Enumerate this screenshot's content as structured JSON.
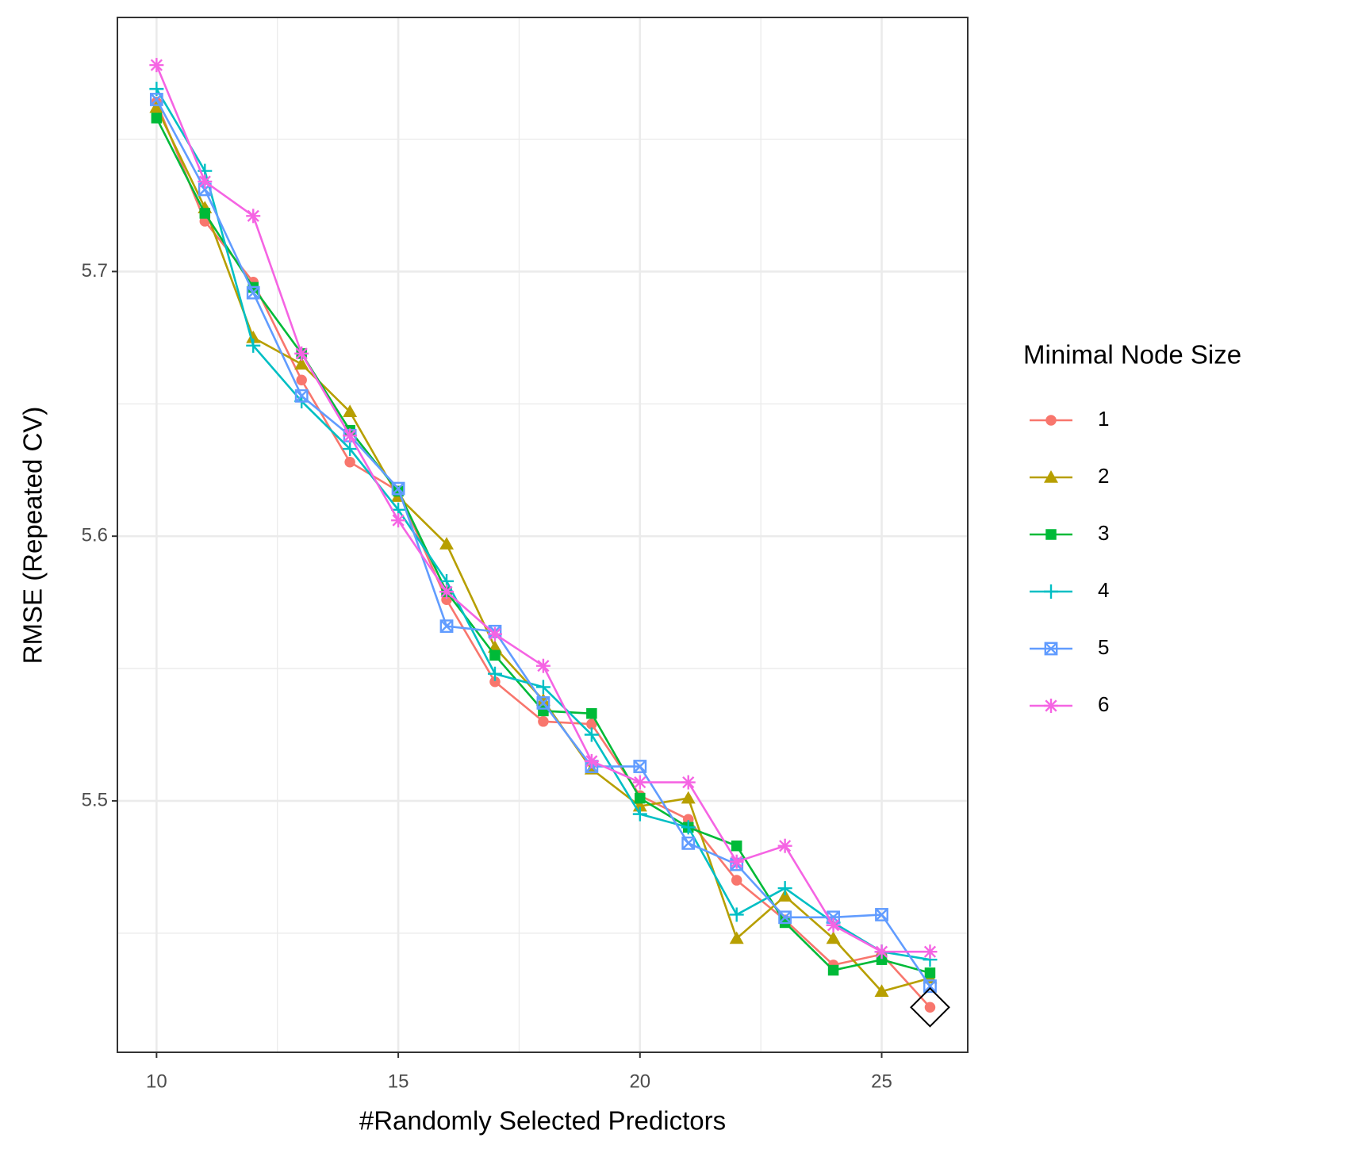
{
  "chart_data": {
    "type": "line",
    "x_label": "#Randomly Selected Predictors",
    "y_label": "RMSE (Repeated CV)",
    "legend_title": "Minimal Node Size",
    "legend_position": "right",
    "grid": true,
    "x": [
      10,
      11,
      12,
      13,
      14,
      15,
      16,
      17,
      18,
      19,
      20,
      21,
      22,
      23,
      24,
      25,
      26
    ],
    "series": [
      {
        "name": "1",
        "color": "#F8766D",
        "shape": "circle",
        "values": [
          5.764,
          5.719,
          5.696,
          5.659,
          5.628,
          5.617,
          5.576,
          5.545,
          5.53,
          5.529,
          5.502,
          5.493,
          5.47,
          5.455,
          5.438,
          5.442,
          5.422
        ]
      },
      {
        "name": "2",
        "color": "#B79F00",
        "shape": "triangle",
        "values": [
          5.762,
          5.724,
          5.675,
          5.665,
          5.647,
          5.615,
          5.597,
          5.558,
          5.538,
          5.512,
          5.498,
          5.501,
          5.448,
          5.464,
          5.448,
          5.428,
          5.433
        ]
      },
      {
        "name": "3",
        "color": "#00BA38",
        "shape": "square",
        "values": [
          5.758,
          5.722,
          5.694,
          5.669,
          5.64,
          5.617,
          5.579,
          5.555,
          5.534,
          5.533,
          5.501,
          5.49,
          5.483,
          5.454,
          5.436,
          5.44,
          5.435
        ]
      },
      {
        "name": "4",
        "color": "#00BFC4",
        "shape": "plus",
        "values": [
          5.769,
          5.738,
          5.672,
          5.651,
          5.633,
          5.61,
          5.583,
          5.548,
          5.543,
          5.525,
          5.495,
          5.49,
          5.457,
          5.467,
          5.454,
          5.443,
          5.44
        ]
      },
      {
        "name": "5",
        "color": "#619CFF",
        "shape": "boxx",
        "values": [
          5.765,
          5.731,
          5.692,
          5.653,
          5.638,
          5.618,
          5.566,
          5.564,
          5.537,
          5.513,
          5.513,
          5.484,
          5.476,
          5.456,
          5.456,
          5.457,
          5.43
        ]
      },
      {
        "name": "6",
        "color": "#F564E3",
        "shape": "asterisk",
        "values": [
          5.778,
          5.734,
          5.721,
          5.669,
          5.638,
          5.606,
          5.579,
          5.563,
          5.551,
          5.515,
          5.507,
          5.507,
          5.477,
          5.483,
          5.453,
          5.443,
          5.443
        ]
      }
    ],
    "best": {
      "series": 0,
      "index": 16
    },
    "xlim": [
      9.19,
      26.78
    ],
    "ylim": [
      5.405,
      5.796
    ],
    "xticks": [
      10,
      15,
      20,
      25
    ],
    "yticks": [
      5.5,
      5.6,
      5.7
    ],
    "x_minor_grid": [
      12.5,
      17.5,
      22.5
    ],
    "y_minor_grid": [
      5.45,
      5.55,
      5.65,
      5.75
    ]
  }
}
